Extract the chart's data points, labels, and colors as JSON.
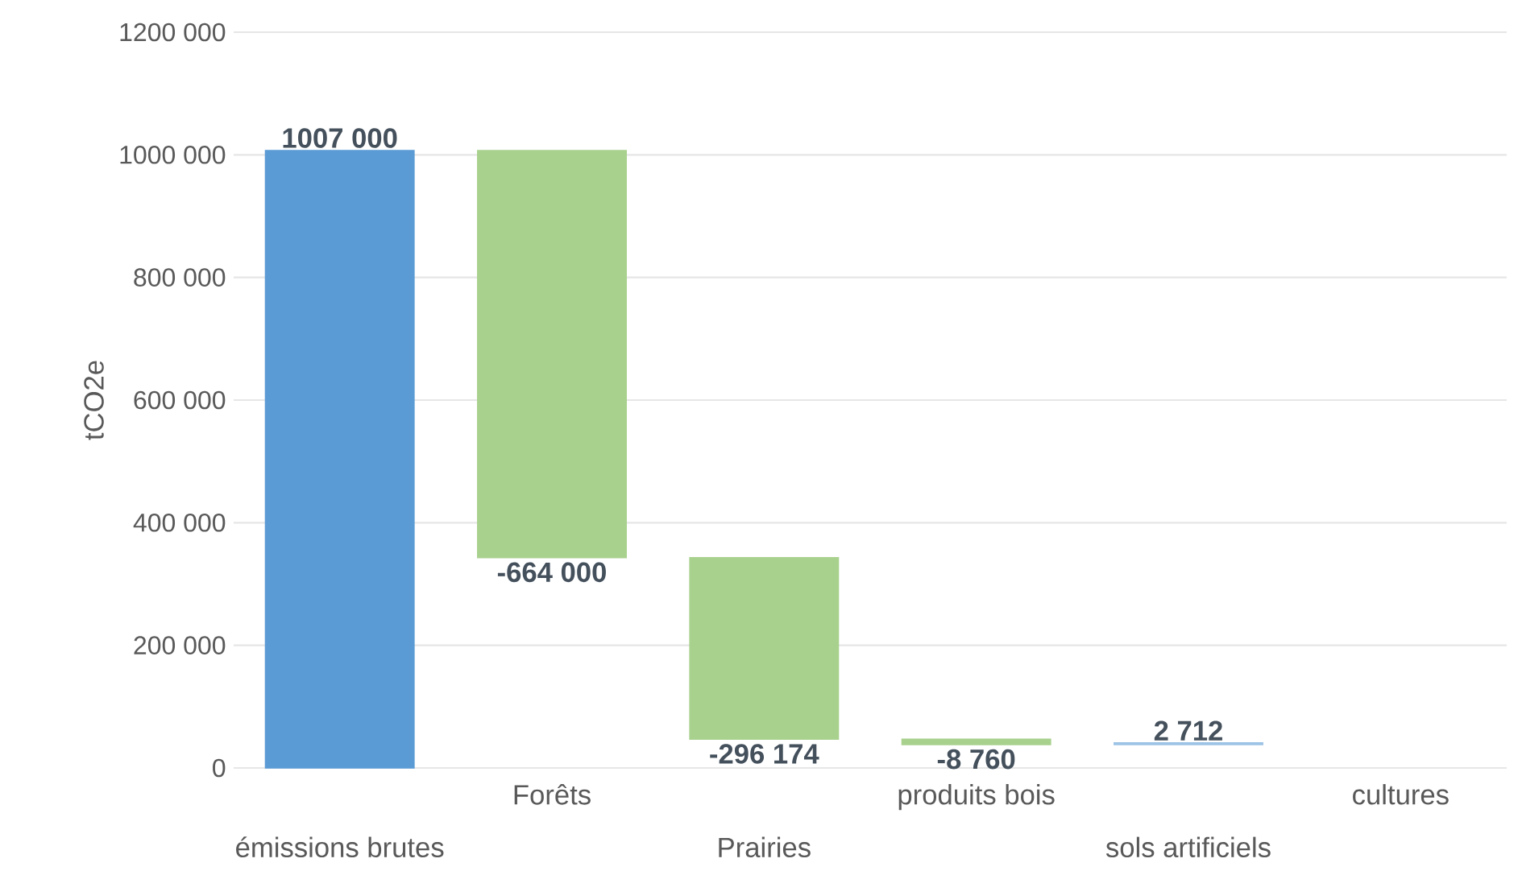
{
  "chart_data": {
    "type": "bar",
    "ylabel": "tCO2e",
    "categories": [
      "émissions brutes",
      "Forêts",
      "Prairies",
      "produits bois",
      "sols artificiels",
      "cultures"
    ],
    "values": [
      1007000,
      -664000,
      -296174,
      -8760,
      2712,
      null
    ],
    "base": [
      0,
      1007000,
      343000,
      46826,
      38066,
      null
    ],
    "colors": [
      "#5b9bd5",
      "#a9d18e",
      "#a9d18e",
      "#a9d18e",
      "#9dc3e6",
      null
    ],
    "value_labels": [
      "1007 000",
      "-664 000",
      "-296 174",
      "-8 760",
      "2 712",
      null
    ],
    "ylim": [
      0,
      1200000
    ],
    "yticks": [
      0,
      {
        "value": 200000,
        "label": "200 000"
      },
      {
        "value": 400000,
        "label": "400 000"
      },
      {
        "value": 600000,
        "label": "600 000"
      },
      {
        "value": 800000,
        "label": "800 000"
      },
      {
        "value": 1000000,
        "label": "1000 000"
      },
      {
        "value": 1200000,
        "label": "1200 000"
      }
    ],
    "grid": "y"
  }
}
